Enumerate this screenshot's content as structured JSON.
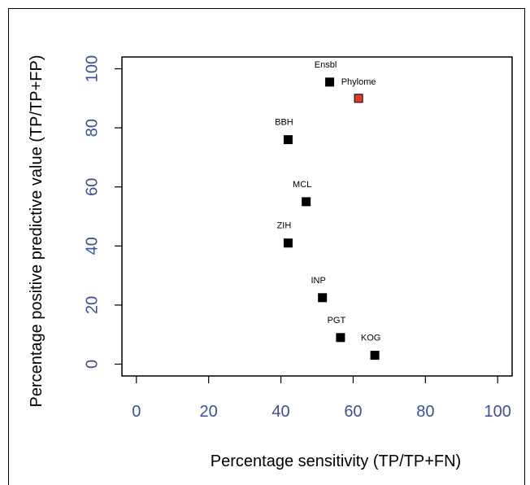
{
  "chart_data": {
    "type": "scatter",
    "title": "",
    "xlabel": "Percentage sensitivity (TP/TP+FN)",
    "ylabel": "Percentage positive predictive value (TP/TP+FP)",
    "xlim": [
      -4,
      104
    ],
    "ylim": [
      -4,
      104
    ],
    "x_ticks": [
      0,
      20,
      40,
      60,
      80,
      100
    ],
    "y_ticks": [
      0,
      20,
      40,
      60,
      80,
      100
    ],
    "grid": false,
    "colors": {
      "default_point": "#000000",
      "highlight_point": "#e03c2c",
      "tick_label": "#3a4fa0"
    },
    "points": [
      {
        "label": "Ensbl",
        "x": 53.5,
        "y": 95.5
      },
      {
        "label": "Phylome",
        "x": 61.5,
        "y": 90,
        "highlight": true
      },
      {
        "label": "BBH",
        "x": 42,
        "y": 76
      },
      {
        "label": "MCL",
        "x": 47,
        "y": 55
      },
      {
        "label": "ZIH",
        "x": 42,
        "y": 41
      },
      {
        "label": "INP",
        "x": 51.5,
        "y": 22.5
      },
      {
        "label": "PGT",
        "x": 56.5,
        "y": 9
      },
      {
        "label": "KOG",
        "x": 66,
        "y": 3
      }
    ]
  }
}
